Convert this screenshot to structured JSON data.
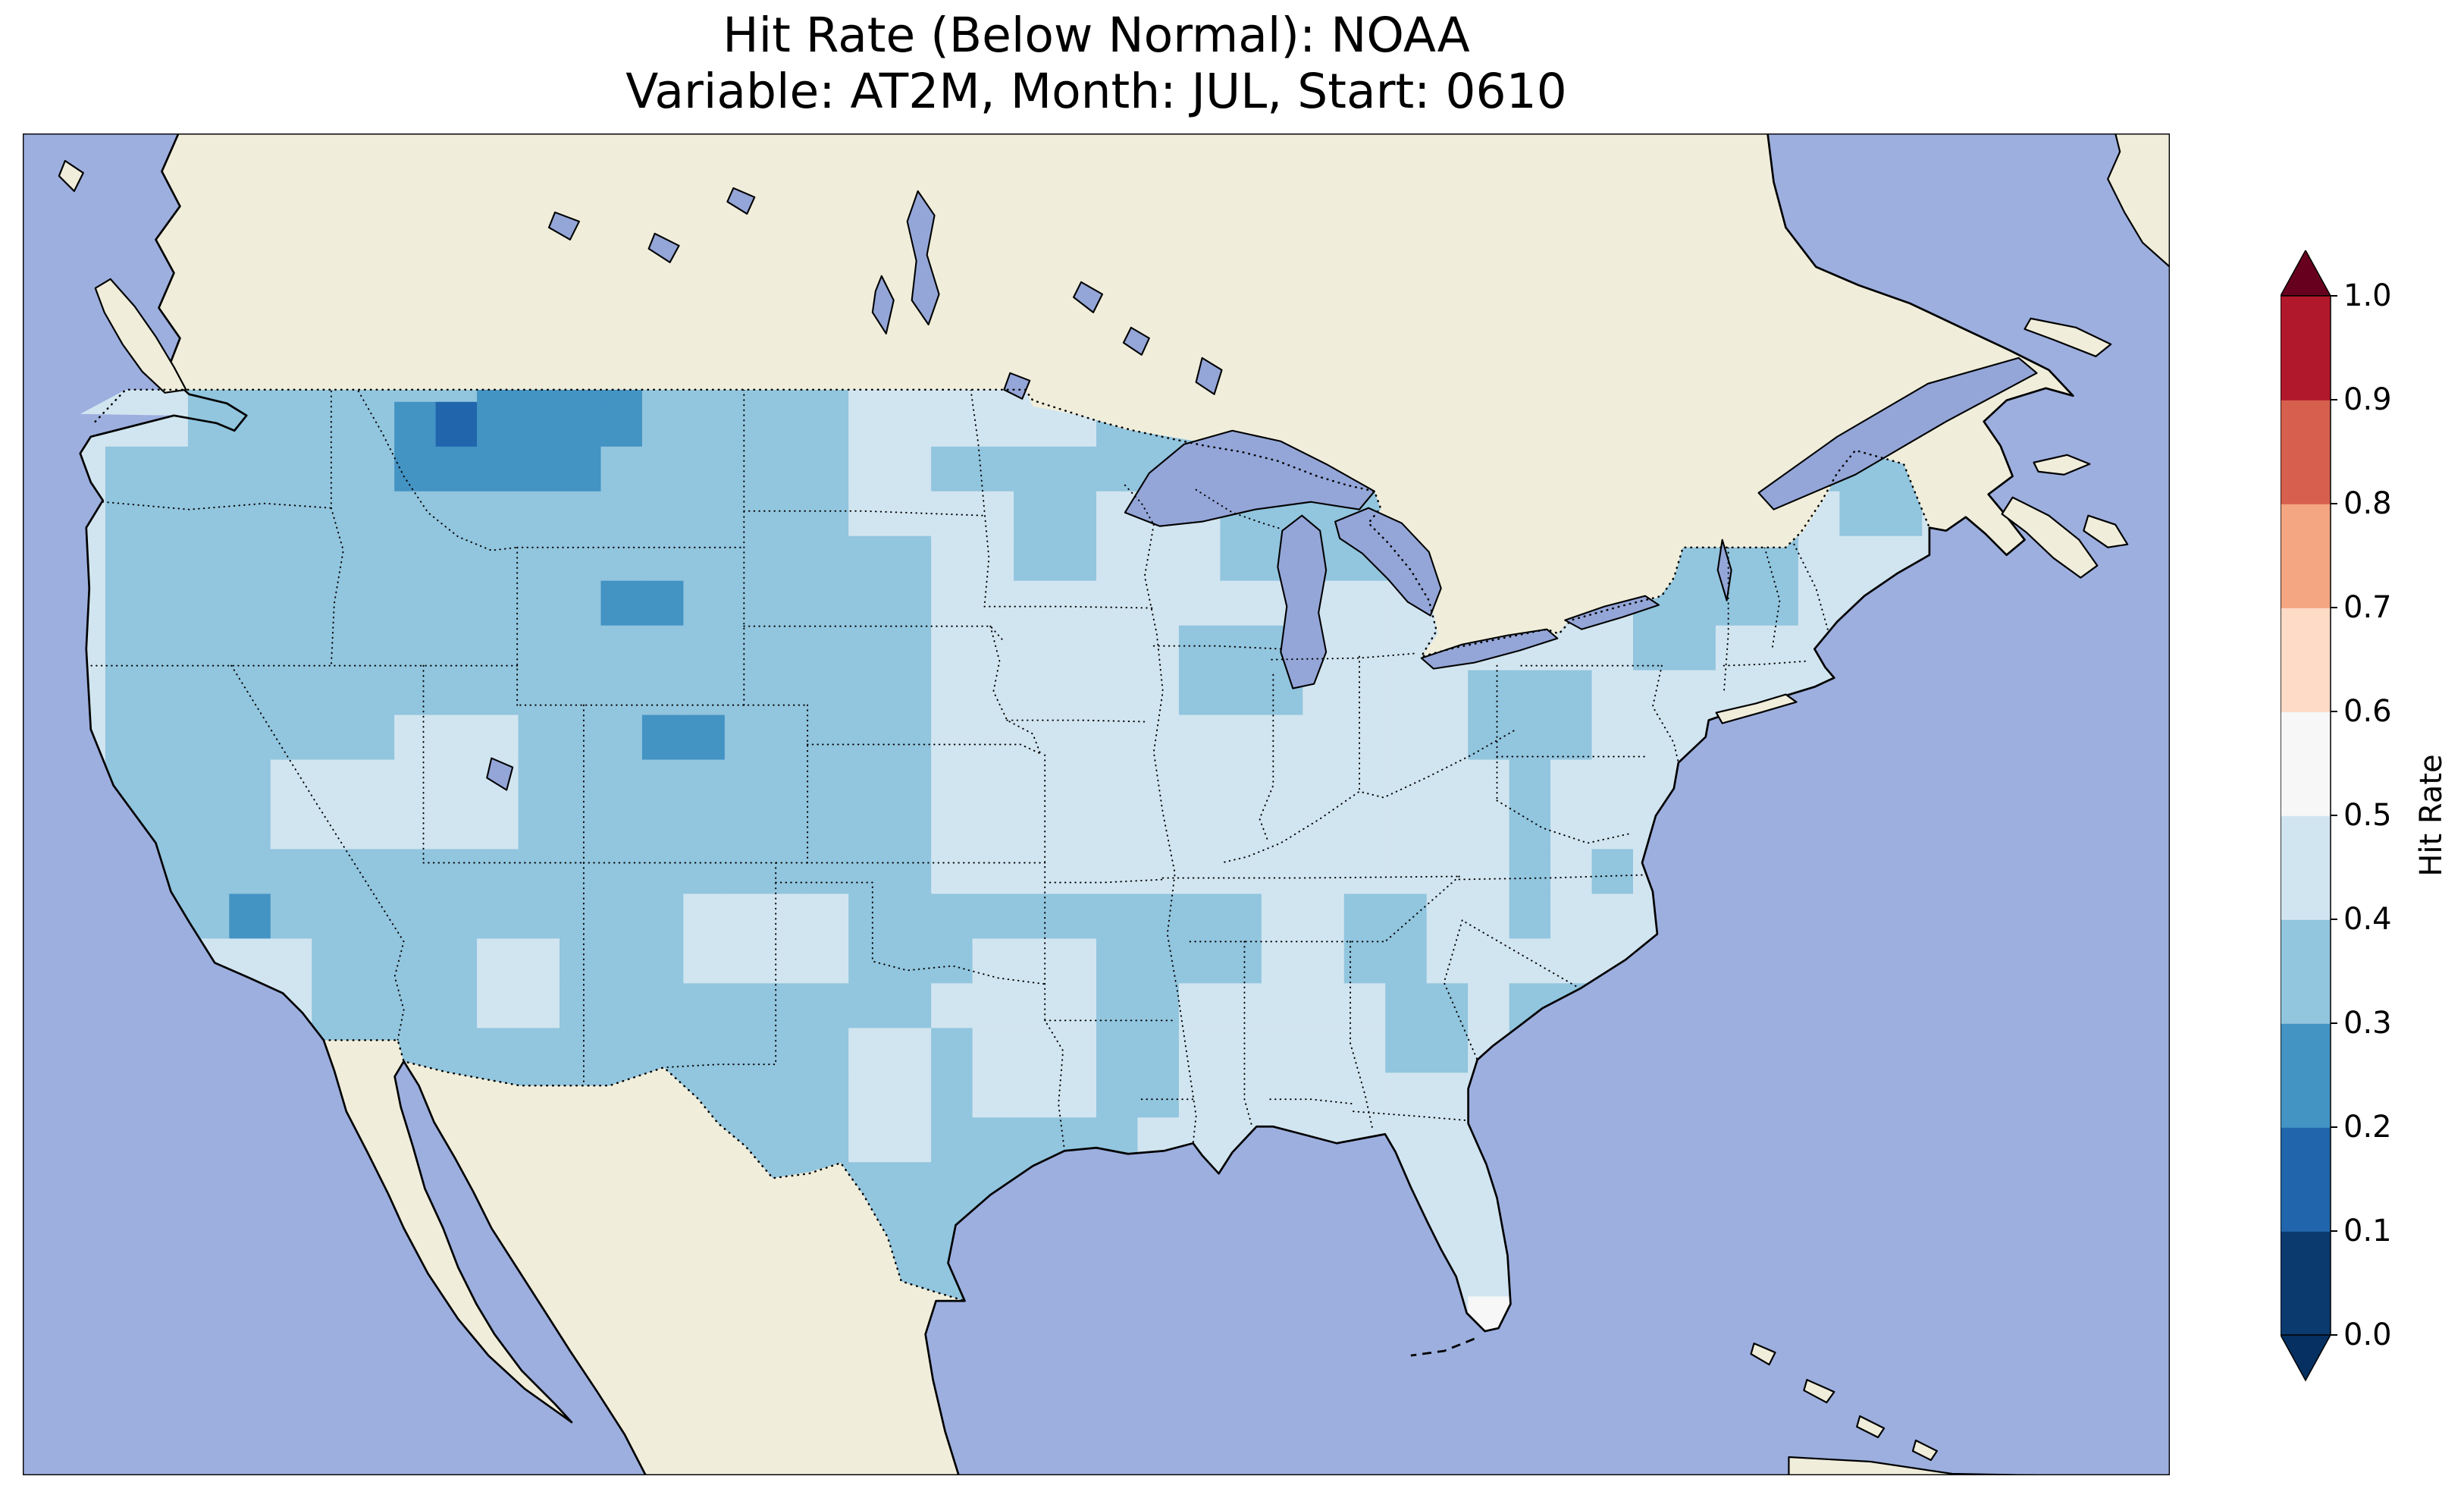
{
  "figure": {
    "title_line1": "Hit Rate (Below Normal): NOAA",
    "title_line2": "Variable: AT2M, Month: JUL, Start: 0610"
  },
  "colors": {
    "background": "#ffffff",
    "ocean": "#9dafdf",
    "land": "#f0eedb",
    "lake": "#94a6d8"
  },
  "chart_data": {
    "type": "heatmap",
    "title": "Hit Rate (Below Normal): NOAA",
    "subtitle": "Variable: AT2M, Month: JUL, Start: 0610",
    "metric": "Hit Rate (Below Normal)",
    "source": "NOAA",
    "variable": "AT2M",
    "month": "JUL",
    "start": "0610",
    "region_shown": "Contiguous United States with surrounding North America",
    "notes": "Gridded hit-rate field over CONUS; values read from the map are binned to 0.1 intervals (bin midpoints stored). Nearly all U.S. cells fall between 0.2 and 0.6; no warm-color (>0.6) cells are present.",
    "colorbar": {
      "label": "Hit Rate",
      "orientation": "vertical",
      "extend": "both",
      "range": [
        0.0,
        1.0
      ],
      "ticks": [
        0.0,
        0.1,
        0.2,
        0.3,
        0.4,
        0.5,
        0.6,
        0.7,
        0.8,
        0.9,
        1.0
      ],
      "tick_labels": [
        "0.0",
        "0.1",
        "0.2",
        "0.3",
        "0.4",
        "0.5",
        "0.6",
        "0.7",
        "0.8",
        "0.9",
        "1.0"
      ],
      "bin_colors": [
        "#0b3a6f",
        "#2166ac",
        "#4393c3",
        "#92c5de",
        "#d1e5f0",
        "#f7f7f7",
        "#fddbc7",
        "#f4a582",
        "#d6604d",
        "#b2182b"
      ],
      "under_color": "#053061",
      "over_color": "#67001f"
    },
    "grid": {
      "cols": 52,
      "rows": 30,
      "base_value": 0.35,
      "units": "hit rate (fraction correct)",
      "regions": [
        {
          "name": "east-light",
          "cols": [
            22,
            51
          ],
          "rows": [
            8,
            29
          ],
          "value": 0.45
        },
        {
          "name": "southern-plains",
          "cols": [
            18,
            27
          ],
          "rows": [
            17,
            29
          ],
          "value": 0.35
        },
        {
          "name": "west-coast-strip",
          "cols": [
            0,
            1
          ],
          "rows": [
            5,
            17
          ],
          "value": 0.45
        },
        {
          "name": "nw-washington",
          "cols": [
            2,
            3
          ],
          "rows": [
            5,
            6
          ],
          "value": 0.45
        },
        {
          "name": "eastern-north-dakota",
          "cols": [
            20,
            21
          ],
          "rows": [
            5,
            8
          ],
          "value": 0.45
        },
        {
          "name": "northern-minnesota",
          "cols": [
            22,
            25
          ],
          "rows": [
            5,
            6
          ],
          "value": 0.45
        },
        {
          "name": "central-minnesota",
          "cols": [
            24,
            25
          ],
          "rows": [
            7,
            9
          ],
          "value": 0.35
        },
        {
          "name": "northern-michigan",
          "cols": [
            29,
            34
          ],
          "rows": [
            8,
            9
          ],
          "value": 0.35
        },
        {
          "name": "southern-michigan",
          "cols": [
            31,
            34
          ],
          "rows": [
            10,
            13
          ],
          "value": 0.45
        },
        {
          "name": "wisconsin",
          "cols": [
            26,
            28
          ],
          "rows": [
            8,
            11
          ],
          "value": 0.45
        },
        {
          "name": "chicago-area",
          "cols": [
            28,
            30
          ],
          "rows": [
            11,
            12
          ],
          "value": 0.35
        },
        {
          "name": "montana-dark",
          "cols": [
            11,
            14
          ],
          "rows": [
            5,
            6
          ],
          "value": 0.25
        },
        {
          "name": "montana-dark-south",
          "cols": [
            11,
            13
          ],
          "rows": [
            7,
            7
          ],
          "value": 0.25
        },
        {
          "name": "nw-montana-dark",
          "cols": [
            9,
            10
          ],
          "rows": [
            6,
            7
          ],
          "value": 0.25
        },
        {
          "name": "nw-montana-darkest",
          "cols": [
            10,
            10
          ],
          "rows": [
            6,
            6
          ],
          "value": 0.15
        },
        {
          "name": "wyoming-spot",
          "cols": [
            14,
            15
          ],
          "rows": [
            10,
            10
          ],
          "value": 0.25
        },
        {
          "name": "colorado-spot",
          "cols": [
            15,
            16
          ],
          "rows": [
            13,
            13
          ],
          "value": 0.25
        },
        {
          "name": "nevada-light",
          "cols": [
            6,
            8
          ],
          "rows": [
            14,
            15
          ],
          "value": 0.45
        },
        {
          "name": "utah-light",
          "cols": [
            9,
            11
          ],
          "rows": [
            13,
            15
          ],
          "value": 0.45
        },
        {
          "name": "west-pennsylvania",
          "cols": [
            35,
            37
          ],
          "rows": [
            12,
            13
          ],
          "value": 0.35
        },
        {
          "name": "adirondacks",
          "cols": [
            39,
            42
          ],
          "rows": [
            9,
            10
          ],
          "value": 0.35
        },
        {
          "name": "new-england-inland",
          "cols": [
            39,
            40
          ],
          "rows": [
            11,
            11
          ],
          "value": 0.35
        },
        {
          "name": "northern-maine",
          "cols": [
            44,
            45
          ],
          "rows": [
            7,
            8
          ],
          "value": 0.35
        },
        {
          "name": "eastern-new-mexico",
          "cols": [
            16,
            19
          ],
          "rows": [
            17,
            18
          ],
          "value": 0.45
        },
        {
          "name": "se-arizona",
          "cols": [
            11,
            12
          ],
          "rows": [
            18,
            19
          ],
          "value": 0.45
        },
        {
          "name": "central-texas",
          "cols": [
            20,
            21
          ],
          "rows": [
            20,
            22
          ],
          "value": 0.45
        },
        {
          "name": "east-texas-arkansas",
          "cols": [
            23,
            25
          ],
          "rows": [
            18,
            21
          ],
          "value": 0.45
        },
        {
          "name": "dallas-cell",
          "cols": [
            22,
            22
          ],
          "rows": [
            19,
            19
          ],
          "value": 0.45
        },
        {
          "name": "socal-coast",
          "cols": [
            4,
            6
          ],
          "rows": [
            18,
            19
          ],
          "value": 0.45
        },
        {
          "name": "socal-dark-cell",
          "cols": [
            5,
            5
          ],
          "rows": [
            17,
            17
          ],
          "value": 0.25
        },
        {
          "name": "north-georgia",
          "cols": [
            32,
            33
          ],
          "rows": [
            17,
            18
          ],
          "value": 0.35
        },
        {
          "name": "central-georgia",
          "cols": [
            33,
            34
          ],
          "rows": [
            19,
            20
          ],
          "value": 0.35
        },
        {
          "name": "west-tennessee",
          "cols": [
            28,
            29
          ],
          "rows": [
            17,
            18
          ],
          "value": 0.35
        },
        {
          "name": "virginia-inland",
          "cols": [
            36,
            36
          ],
          "rows": [
            14,
            17
          ],
          "value": 0.35
        },
        {
          "name": "central-north-carolina",
          "cols": [
            38,
            38
          ],
          "rows": [
            16,
            16
          ],
          "value": 0.35
        },
        {
          "name": "sc-coast",
          "cols": [
            36,
            37
          ],
          "rows": [
            19,
            20
          ],
          "value": 0.35
        },
        {
          "name": "se-louisiana",
          "cols": [
            27,
            27
          ],
          "rows": [
            22,
            22
          ],
          "value": 0.45
        },
        {
          "name": "south-florida-white",
          "cols": [
            35,
            36
          ],
          "rows": [
            26,
            26
          ],
          "value": 0.55
        }
      ]
    }
  }
}
